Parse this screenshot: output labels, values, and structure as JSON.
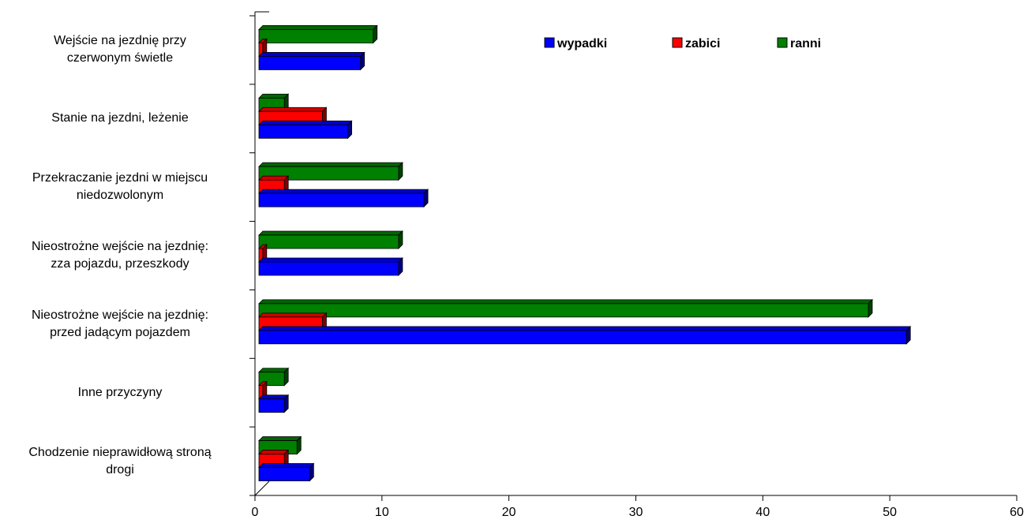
{
  "chart_data": {
    "type": "bar3d_horizontal",
    "categories": [
      "Wejście na jezdnię przy\nczerwonym świetle",
      "Stanie na jezdni, leżenie",
      "Przekraczanie jezdni w miejscu\nniedozwolonym",
      "Nieostrożne wejście na jezdnię:\nzza pojazdu, przeszkody",
      "Nieostrożne wejście na jezdnię:\nprzed jadącym pojazdem",
      "Inne przyczyny",
      "Chodzenie nieprawidłową stroną\ndrogi"
    ],
    "series": [
      {
        "name": "wypadki",
        "color": "#0000ff",
        "values": [
          8,
          7,
          13,
          11,
          51,
          2,
          4
        ]
      },
      {
        "name": "zabici",
        "color": "#ff0000",
        "values": [
          0.3,
          5,
          2,
          0.3,
          5,
          0.3,
          2
        ]
      },
      {
        "name": "ranni",
        "color": "#008000",
        "values": [
          9,
          2,
          11,
          11,
          48,
          2,
          3
        ]
      }
    ],
    "xlim": [
      0,
      60
    ],
    "xticks": [
      0,
      10,
      20,
      30,
      40,
      50,
      60
    ],
    "legend": "top"
  }
}
